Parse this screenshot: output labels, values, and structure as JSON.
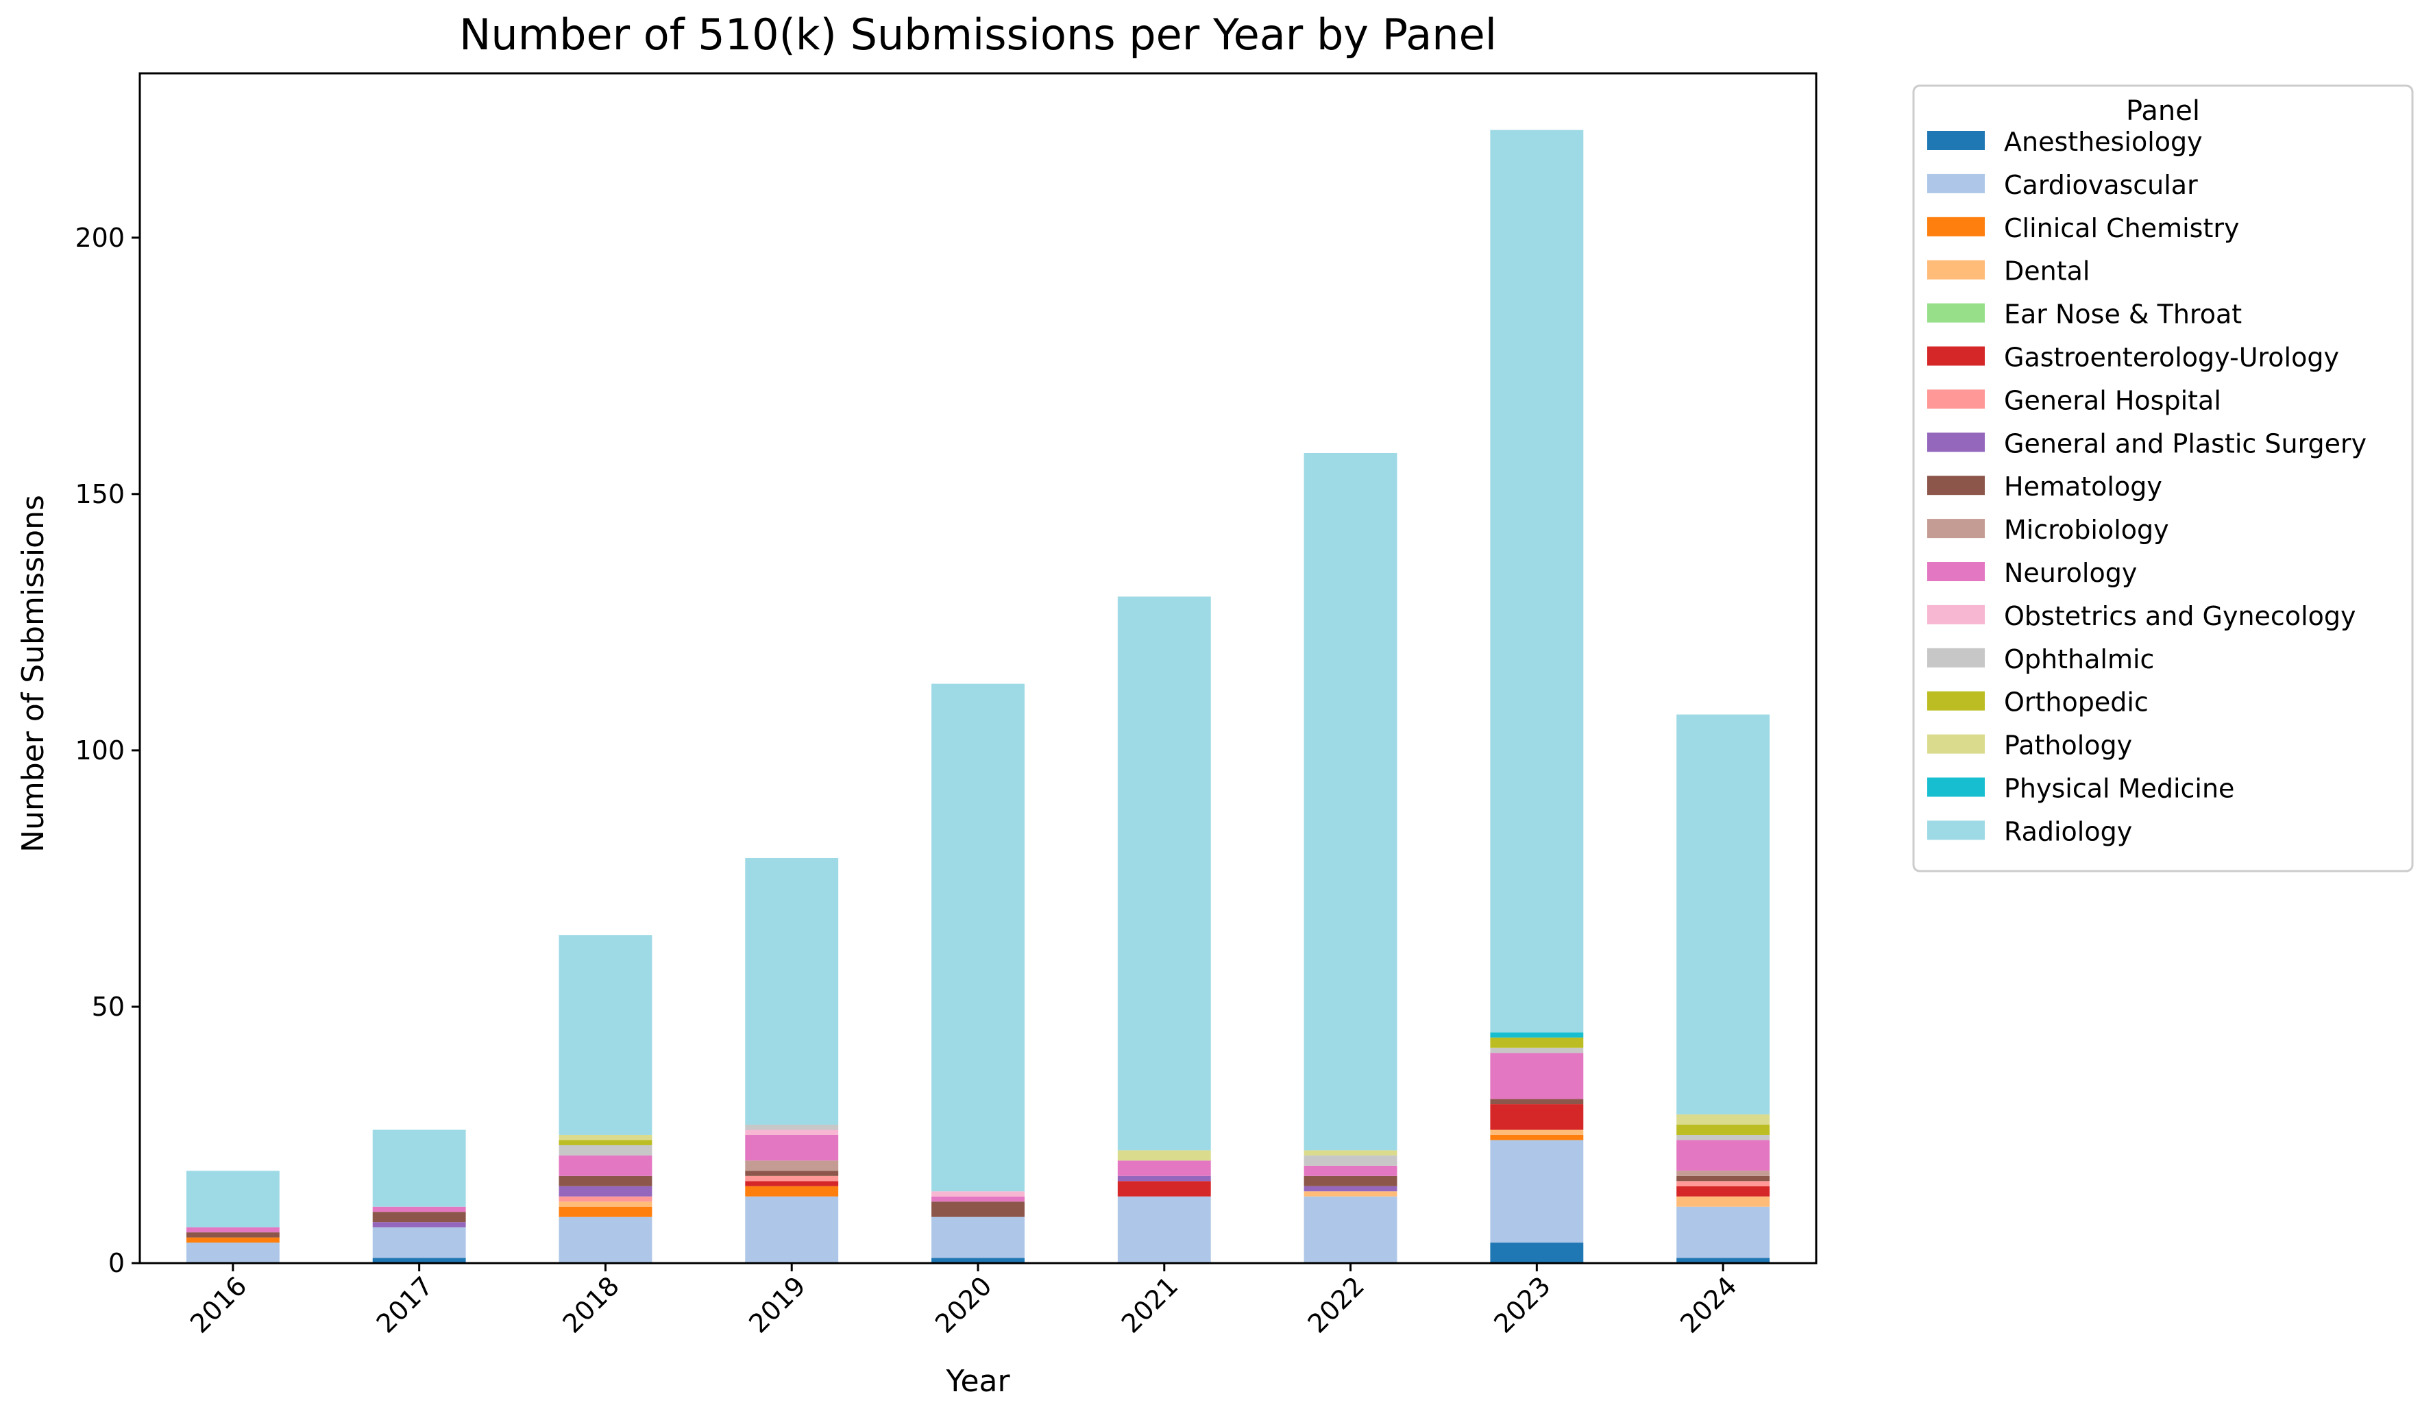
{
  "chart_data": {
    "type": "bar",
    "stacked": true,
    "title": "Number of 510(k) Submissions per Year by Panel",
    "xlabel": "Year",
    "ylabel": "Number of Submissions",
    "ylim": [
      0,
      232.05
    ],
    "yticks": [
      0,
      50,
      100,
      150,
      200
    ],
    "categories": [
      "2016",
      "2017",
      "2018",
      "2019",
      "2020",
      "2021",
      "2022",
      "2023",
      "2024"
    ],
    "grid": false,
    "legend": {
      "title": "Panel",
      "placement": "outside-right"
    },
    "series": [
      {
        "name": "Anesthesiology",
        "color": "#1f77b4",
        "values": [
          0,
          1,
          0,
          0,
          1,
          0,
          0,
          4,
          1
        ]
      },
      {
        "name": "Cardiovascular",
        "color": "#aec7e8",
        "values": [
          4,
          6,
          9,
          13,
          8,
          13,
          13,
          20,
          10
        ]
      },
      {
        "name": "Clinical Chemistry",
        "color": "#ff7f0e",
        "values": [
          1,
          0,
          2,
          2,
          0,
          0,
          0,
          1,
          0
        ]
      },
      {
        "name": "Dental",
        "color": "#ffbb78",
        "values": [
          0,
          0,
          1,
          0,
          0,
          0,
          1,
          1,
          2
        ]
      },
      {
        "name": "Ear Nose & Throat",
        "color": "#98df8a",
        "values": [
          0,
          0,
          0,
          0,
          0,
          0,
          0,
          0,
          0
        ]
      },
      {
        "name": "Gastroenterology-Urology",
        "color": "#d62728",
        "values": [
          0,
          0,
          0,
          1,
          0,
          3,
          0,
          5,
          2
        ]
      },
      {
        "name": "General Hospital",
        "color": "#ff9896",
        "values": [
          0,
          0,
          1,
          1,
          0,
          0,
          0,
          0,
          1
        ]
      },
      {
        "name": "General and Plastic Surgery",
        "color": "#9467bd",
        "values": [
          0,
          1,
          2,
          0,
          0,
          1,
          1,
          0,
          0
        ]
      },
      {
        "name": "Hematology",
        "color": "#8c564b",
        "values": [
          1,
          2,
          2,
          1,
          3,
          0,
          2,
          1,
          1
        ]
      },
      {
        "name": "Microbiology",
        "color": "#c49c94",
        "values": [
          0,
          0,
          0,
          2,
          0,
          0,
          0,
          0,
          1
        ]
      },
      {
        "name": "Neurology",
        "color": "#e377c2",
        "values": [
          1,
          1,
          4,
          5,
          1,
          3,
          2,
          9,
          6
        ]
      },
      {
        "name": "Obstetrics and Gynecology",
        "color": "#f7b6d2",
        "values": [
          0,
          0,
          0,
          1,
          1,
          0,
          0,
          0,
          0
        ]
      },
      {
        "name": "Ophthalmic",
        "color": "#c7c7c7",
        "values": [
          0,
          0,
          2,
          1,
          0,
          0,
          2,
          1,
          1
        ]
      },
      {
        "name": "Orthopedic",
        "color": "#bcbd22",
        "values": [
          0,
          0,
          1,
          0,
          0,
          0,
          0,
          2,
          2
        ]
      },
      {
        "name": "Pathology",
        "color": "#dbdb8d",
        "values": [
          0,
          0,
          1,
          0,
          0,
          2,
          1,
          0,
          2
        ]
      },
      {
        "name": "Physical Medicine",
        "color": "#17becf",
        "values": [
          0,
          0,
          0,
          0,
          0,
          0,
          0,
          1,
          0
        ]
      },
      {
        "name": "Radiology",
        "color": "#9edae5",
        "values": [
          11,
          15,
          39,
          52,
          99,
          108,
          136,
          176,
          78
        ]
      }
    ]
  }
}
